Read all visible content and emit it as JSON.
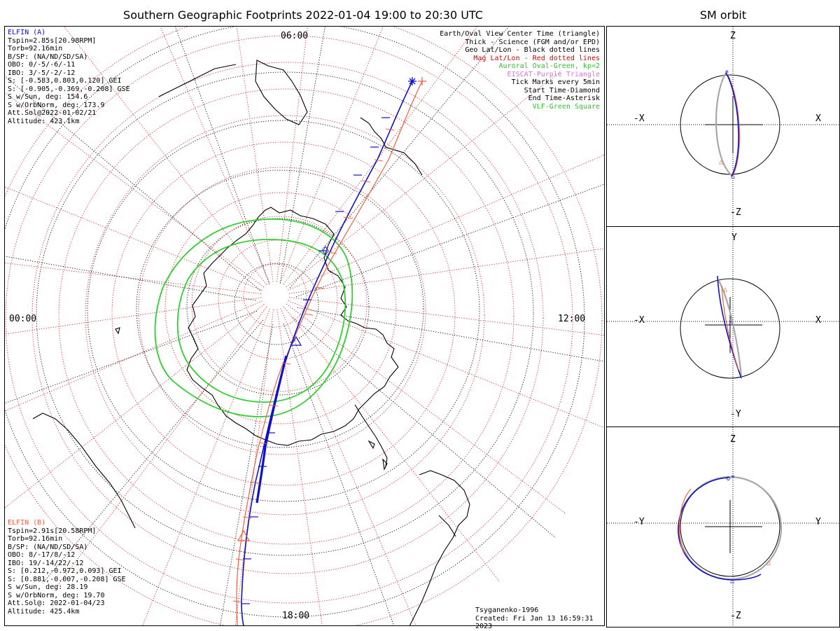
{
  "title": "Southern Geographic Footprints 2022-01-04 19:00 to 20:30 UTC",
  "sm_title": "SM orbit",
  "hour_labels": {
    "top": "06:00",
    "left": "00:00",
    "right": "12:00",
    "bottom": "18:00"
  },
  "elfin_a": {
    "name": "ELFIN (A)",
    "color": "#1010c8",
    "lines": [
      "Tspin=2.85s[20.98RPM]",
      "Torb=92.16min",
      "B/SP: (NA/ND/SD/SA)",
      "OBO: 0/-5/-6/-11",
      "IBO: 3/-5/-2/-12",
      "S: [-0.583,0.803,0.120] GEI",
      "S: [-0.905,-0.369,-0.208] GSE",
      "S w/Sun, deg: 154.6",
      "S w/OrbNorm, deg: 173.9",
      "Att.Sol@2022-01-02/21",
      "Altitude: 423.1km"
    ]
  },
  "elfin_b": {
    "name": "ELFIN (B)",
    "color": "#f06040",
    "lines": [
      "Tspin=2.91s[20.58RPM]",
      "Torb=92.16min",
      "B/SP: (NA/ND/SD/SA)",
      "OBO: 8/-17/8/-12",
      "IBO: 19/-14/22/-12",
      "S: [0.212,-0.972,0.093] GEI",
      "S: [0.881,-0.007,-0.208] GSE",
      "S w/Sun, deg: 28.19",
      "S w/OrbNorm, deg: 19.70",
      "Att.Sol@: 2022-01-04/23",
      "Altitude: 425.4km"
    ]
  },
  "legend": [
    {
      "text": "Earth/Oval View Center Time (triangle)",
      "color": "#000000"
    },
    {
      "text": "Thick - Science (FGM and/or EPD)",
      "color": "#000000"
    },
    {
      "text": "Geo Lat/Lon - Black dotted lines",
      "color": "#000000"
    },
    {
      "text": "Mag Lat/Lon - Red dotted lines",
      "color": "#e00000"
    },
    {
      "text": "Auroral Oval-Green, kp=2",
      "color": "#30c030"
    },
    {
      "text": "EISCAT-Purple Triangle",
      "color": "#e070e0"
    },
    {
      "text": "Tick Marks every 5min",
      "color": "#000000"
    },
    {
      "text": "Start Time-Diamond",
      "color": "#000000"
    },
    {
      "text": "End Time-Asterisk",
      "color": "#000000"
    },
    {
      "text": "VLF-Green Square",
      "color": "#30c030"
    }
  ],
  "credit": {
    "model": "Tsyganenko-1996",
    "created": "Created: Fri Jan 13 16:59:31 2023"
  },
  "sm_panels": [
    {
      "top": "Z",
      "bottom": "-Z",
      "left": "-X",
      "right": "X"
    },
    {
      "top": "Y",
      "bottom": "-Y",
      "left": "-X",
      "right": "X"
    },
    {
      "top": "Z",
      "bottom": "-Z",
      "left": "-Y",
      "right": "Y"
    }
  ],
  "colors": {
    "elfin_a": "#1010c8",
    "elfin_b": "#f06040",
    "oval": "#30d030",
    "mag_grid": "#e02020",
    "sm_gray": "#a8a8a8"
  },
  "chart_data": {
    "type": "polar-map",
    "projection": "south-polar",
    "time_range": [
      "2022-01-04 19:00",
      "2022-01-04 20:30"
    ],
    "mlt_labels": [
      "00:00",
      "06:00",
      "12:00",
      "18:00"
    ],
    "auroral_oval_kp": 2,
    "tick_interval_min": 5
  }
}
